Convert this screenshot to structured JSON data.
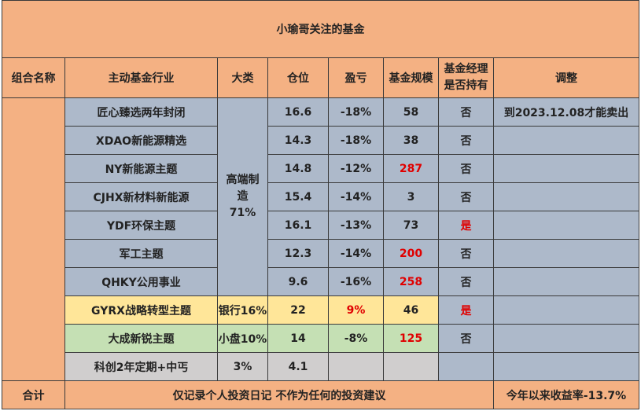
{
  "title": "小瑜哥关注的基金",
  "headers": [
    "组合名称",
    "主动基金行业",
    "大类",
    "仓位",
    "盈亏",
    "基金规模",
    "基金经理是否持有",
    "调整"
  ],
  "rows": [
    {
      "name": "匠心臻选两年封闭",
      "position": "16.6",
      "pnl": "-18%",
      "size": "58",
      "held": "否",
      "adjust": "到2023.12.08才能卖出"
    },
    {
      "name": "XDAO新能源精选",
      "position": "14.3",
      "pnl": "-18%",
      "size": "38",
      "held": "否",
      "adjust": ""
    },
    {
      "name": "NY新能源主题",
      "position": "14.8",
      "pnl": "-12%",
      "size": "287",
      "held": "否",
      "adjust": ""
    },
    {
      "name": "CJHX新材料新能源",
      "position": "15.4",
      "pnl": "-14%",
      "size": "3",
      "held": "否",
      "adjust": ""
    },
    {
      "name": "YDF环保主题",
      "position": "16.1",
      "pnl": "-13%",
      "size": "73",
      "held": "是",
      "adjust": ""
    },
    {
      "name": "军工主题",
      "position": "12.3",
      "pnl": "-14%",
      "size": "200",
      "held": "否",
      "adjust": ""
    },
    {
      "name": "QHKY公用事业",
      "position": "9.6",
      "pnl": "-16%",
      "size": "258",
      "held": "否",
      "adjust": ""
    },
    {
      "name": "GYRX战略转型主题",
      "category": "银行16%",
      "position": "22",
      "pnl": "9%",
      "size": "46",
      "held": "是",
      "adjust": ""
    },
    {
      "name": "大成新锐主题",
      "category": "小盘10%",
      "position": "14",
      "pnl": "-8%",
      "size": "125",
      "held": "否",
      "adjust": ""
    },
    {
      "name": "科创2年定期+中丐",
      "category": "3%",
      "position": "4.1",
      "pnl": "",
      "size": "",
      "held": "",
      "adjust": ""
    }
  ],
  "group_category": "高端制造71%",
  "footer": {
    "label": "合计",
    "note": "仅记录个人投资日记 不作为任何的投资建议",
    "return": "今年以来收益率-13.7%"
  },
  "colors": {
    "orange": "#f4b183",
    "blue": "#adb9ca",
    "yellow": "#ffe699",
    "green": "#c5e0b4",
    "gray": "#d0cece",
    "red": "#e00000"
  }
}
